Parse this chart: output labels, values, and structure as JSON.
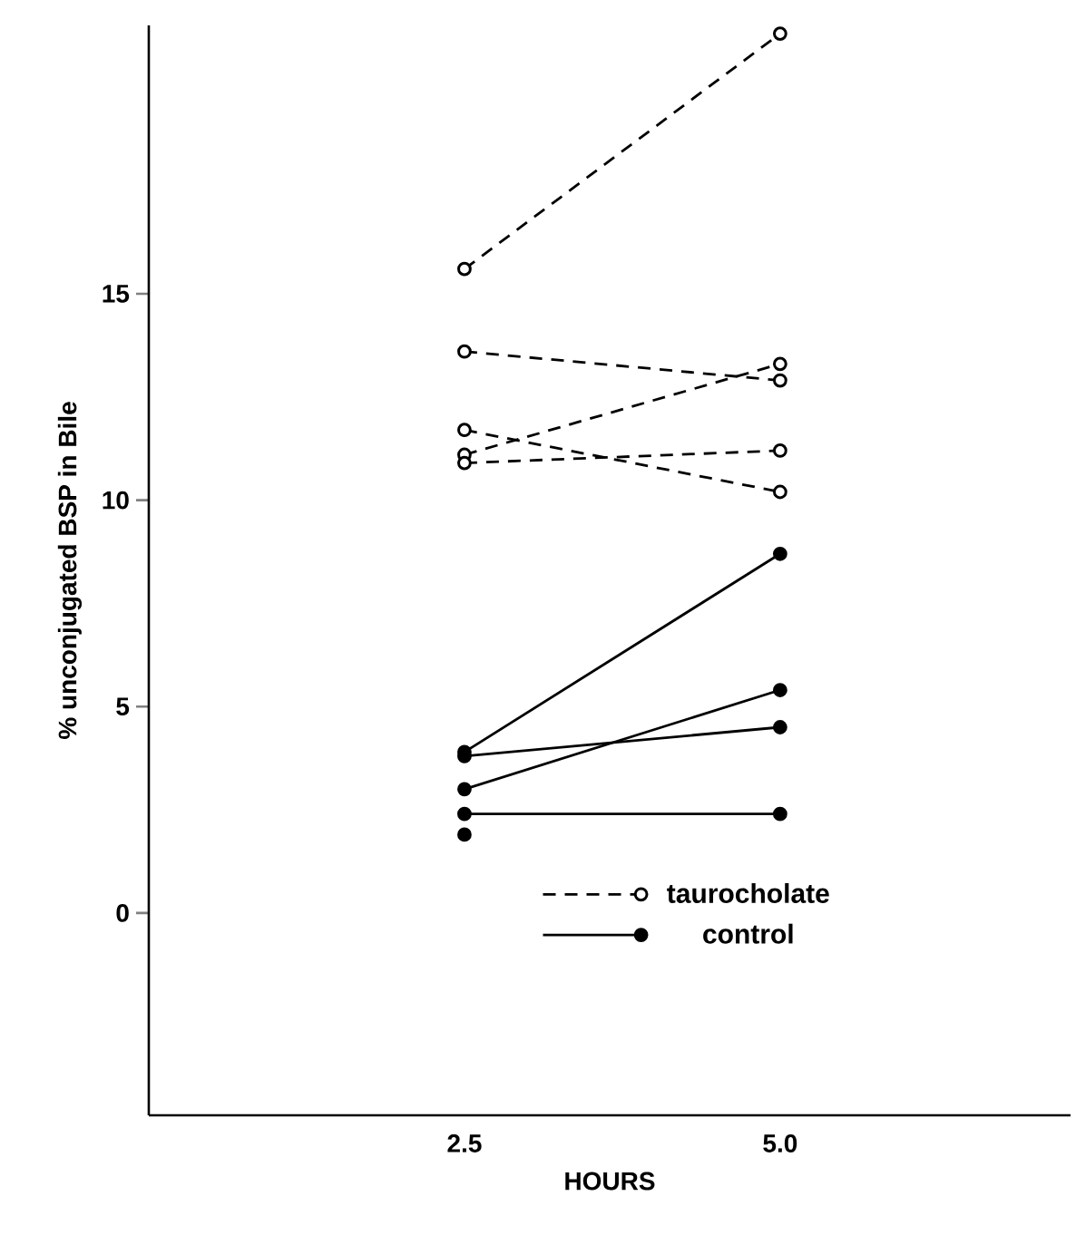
{
  "chart_data": {
    "type": "line",
    "xlabel": "HOURS",
    "ylabel": "% unconjugated BSP in Bile",
    "x": [
      2.5,
      5.0
    ],
    "xlim": [
      0,
      7.3
    ],
    "xticks": [
      2.5,
      {
        "value": 5.0,
        "label": "5.0"
      }
    ],
    "ylim": [
      -4.9,
      21.5
    ],
    "yticks": [
      0,
      5,
      10,
      15
    ],
    "grid": false,
    "legend": "bottom right",
    "marker": "circle",
    "series": [
      {
        "name": "taurocholate",
        "color": "#000000",
        "line_style": "dashed",
        "values": [
          15.6,
          21.3
        ]
      },
      {
        "color": "#000000",
        "line_style": "dashed",
        "values": [
          13.6,
          12.9
        ]
      },
      {
        "color": "#000000",
        "line_style": "dashed",
        "values": [
          11.7,
          10.2
        ]
      },
      {
        "color": "#000000",
        "line_style": "dashed",
        "values": [
          11.1,
          13.3
        ]
      },
      {
        "color": "#000000",
        "line_style": "dashed",
        "values": [
          10.9,
          11.2
        ]
      },
      {
        "name": "control",
        "color": "#000000",
        "line_style": "solid",
        "values": [
          3.9,
          8.7
        ]
      },
      {
        "color": "#000000",
        "line_style": "solid",
        "values": [
          3.8,
          4.5
        ]
      },
      {
        "color": "#000000",
        "line_style": "solid",
        "values": [
          3.0,
          5.4
        ]
      },
      {
        "color": "#000000",
        "line_style": "solid",
        "values": [
          2.4,
          2.4
        ]
      },
      {
        "color": "#000000",
        "line_style": "solid",
        "values": [
          1.9,
          null
        ]
      }
    ]
  }
}
